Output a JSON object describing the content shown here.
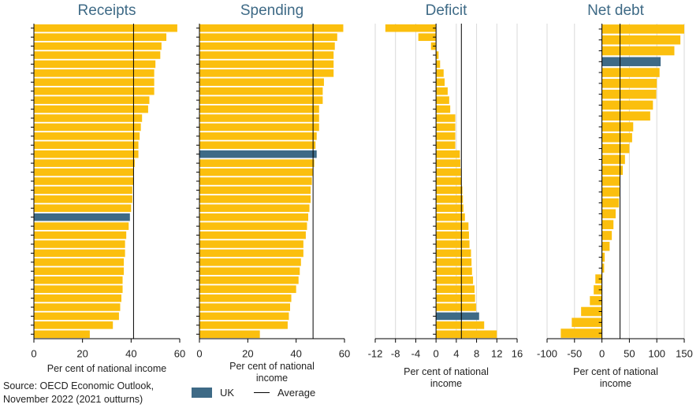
{
  "chart_data": [
    {
      "type": "bar",
      "title": "Receipts",
      "x_label": "Per cent of national income",
      "xlim": [
        0,
        60
      ],
      "xticks": [
        0,
        20,
        40,
        60
      ],
      "grid": false,
      "color": "#fbbf0e",
      "highlight_index": 21,
      "highlight_color": "#3e6a86",
      "average": 41,
      "values": [
        59,
        54.5,
        52.5,
        52,
        50,
        49.5,
        49.5,
        49.5,
        47.5,
        47,
        44.5,
        44,
        43.5,
        43,
        43,
        41.5,
        41,
        41,
        40.5,
        40.5,
        40,
        39.5,
        39,
        38,
        37.5,
        37.5,
        37,
        37,
        36.5,
        36.5,
        36,
        35.5,
        35,
        32.5,
        23
      ]
    },
    {
      "type": "bar",
      "title": "Spending",
      "x_label": "Per cent of national income",
      "xlim": [
        0,
        60
      ],
      "xticks": [
        0,
        20,
        40,
        60
      ],
      "grid": false,
      "color": "#fbbf0e",
      "highlight_index": 14,
      "highlight_color": "#3e6a86",
      "average": 47,
      "values": [
        59.5,
        57,
        56,
        55.5,
        55.5,
        55.5,
        51.5,
        51,
        51,
        49.5,
        49.5,
        49.5,
        48.5,
        48,
        48.5,
        47.5,
        47,
        46.5,
        46,
        46,
        45.5,
        45,
        44.5,
        44,
        43,
        43,
        42,
        41.5,
        41,
        40,
        38,
        37.5,
        37,
        36.5,
        25
      ]
    },
    {
      "type": "bar",
      "title": "Deficit",
      "x_label": "Per cent of national income",
      "xlim": [
        -12,
        16
      ],
      "xticks": [
        -12,
        -8,
        -4,
        0,
        4,
        8,
        12,
        16
      ],
      "grid": true,
      "color": "#fbbf0e",
      "highlight_index": 32,
      "highlight_color": "#3e6a86",
      "average": 5,
      "values": [
        -10,
        -3.5,
        -1,
        0.5,
        0.8,
        1.5,
        1.7,
        2.3,
        2.6,
        2.8,
        3.8,
        3.8,
        3.8,
        3.8,
        4.7,
        4.8,
        4.9,
        5,
        5.2,
        5.3,
        5.4,
        5.7,
        6.4,
        6.5,
        6.6,
        6.9,
        7,
        7.1,
        7.3,
        7.6,
        7.7,
        7.9,
        8.5,
        9.5,
        12
      ]
    },
    {
      "type": "bar",
      "title": "Net debt",
      "x_label": "Per cent of national income",
      "xlim": [
        -100,
        150
      ],
      "xticks": [
        -100,
        -50,
        0,
        50,
        100,
        150
      ],
      "grid": true,
      "color": "#fbbf0e",
      "highlight_index": 3,
      "highlight_color": "#3e6a86",
      "average": 33,
      "values": [
        150,
        143,
        132,
        107,
        105,
        100,
        99,
        93,
        88,
        57,
        55,
        50,
        42,
        38,
        33,
        32,
        31,
        25,
        21,
        18,
        14,
        5,
        4,
        -12,
        -15,
        -22,
        -38,
        -55,
        -75
      ]
    }
  ],
  "legend": {
    "highlight": "UK",
    "average": "Average"
  },
  "source": "Source: OECD Economic Outlook, November 2022 (2021 outturns)"
}
